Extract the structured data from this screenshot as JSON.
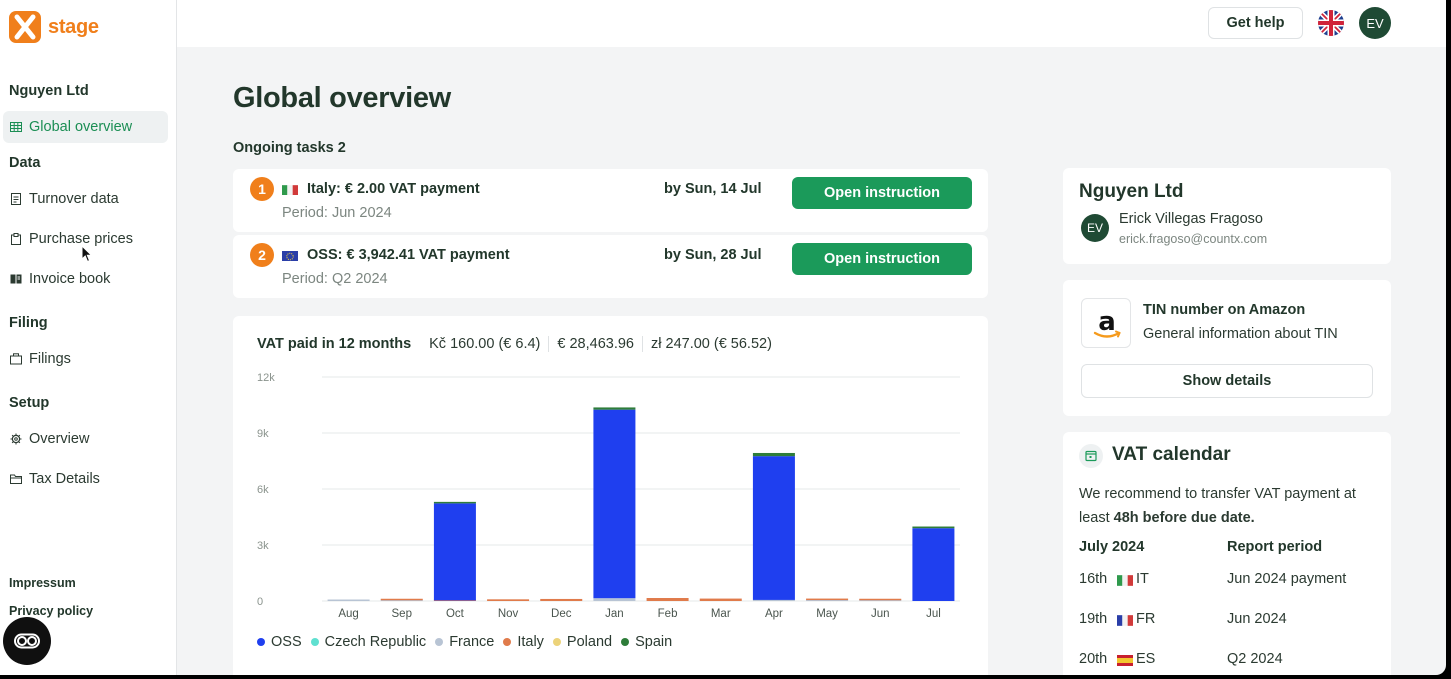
{
  "brand": {
    "name": "stage",
    "accent": "#f07f1b"
  },
  "sidebar": {
    "company": "Nguyen Ltd",
    "active_item": "Global overview",
    "sections": [
      {
        "heading": "Data",
        "items": [
          "Turnover data",
          "Purchase prices",
          "Invoice book"
        ]
      },
      {
        "heading": "Filing",
        "items": [
          "Filings"
        ]
      },
      {
        "heading": "Setup",
        "items": [
          "Overview",
          "Tax Details"
        ]
      }
    ],
    "footer": [
      "Impressum",
      "Privacy policy"
    ]
  },
  "topbar": {
    "help_label": "Get help",
    "language_icon": "uk-flag-icon",
    "avatar_initials": "EV"
  },
  "main": {
    "title": "Global overview",
    "tasks_title": "Ongoing tasks 2",
    "tasks": [
      {
        "number": "1",
        "flag": "italy-flag-icon",
        "title": "Italy:  € 2.00 VAT payment",
        "period": "Period: Jun 2024",
        "due": "by Sun, 14 Jul",
        "button": "Open instruction"
      },
      {
        "number": "2",
        "flag": "eu-flag-icon",
        "title": "OSS:  € 3,942.41 VAT payment",
        "period": "Period: Q2 2024",
        "due": "by Sun, 28 Jul",
        "button": "Open instruction"
      }
    ]
  },
  "chart_header": {
    "title": "VAT paid in 12 months",
    "totals": [
      "Kč 160.00 (€ 6.4)",
      "€ 28,463.96",
      "zł 247.00 (€ 56.52)"
    ]
  },
  "chart_data": {
    "type": "bar",
    "stacked": true,
    "categories": [
      "Aug",
      "Sep",
      "Oct",
      "Nov",
      "Dec",
      "Jan",
      "Feb",
      "Mar",
      "Apr",
      "May",
      "Jun",
      "Jul"
    ],
    "ylim": [
      0,
      12000
    ],
    "yticks": [
      0,
      3000,
      6000,
      9000,
      12000
    ],
    "ytick_labels": [
      "0",
      "3k",
      "6k",
      "9k",
      "12k"
    ],
    "grid": true,
    "legend_position": "bottom-left",
    "series": [
      {
        "name": "France",
        "color": "#b8c4d4",
        "values": [
          40,
          40,
          0,
          0,
          0,
          150,
          0,
          0,
          60,
          50,
          40,
          0
        ]
      },
      {
        "name": "Italy",
        "color": "#e07b4b",
        "values": [
          0,
          20,
          30,
          90,
          110,
          0,
          160,
          130,
          0,
          40,
          20,
          0
        ]
      },
      {
        "name": "OSS",
        "color": "#1f3fef",
        "values": [
          0,
          0,
          5200,
          0,
          0,
          10100,
          0,
          0,
          7700,
          0,
          0,
          3900
        ]
      },
      {
        "name": "Czech Republic",
        "color": "#5fe0d0",
        "values": [
          0,
          0,
          0,
          0,
          0,
          0,
          0,
          0,
          0,
          0,
          0,
          0
        ]
      },
      {
        "name": "Poland",
        "color": "#ecd37a",
        "values": [
          0,
          0,
          0,
          0,
          0,
          0,
          0,
          0,
          0,
          0,
          0,
          0
        ]
      },
      {
        "name": "Spain",
        "color": "#2e7d3a",
        "values": [
          0,
          0,
          30,
          0,
          0,
          120,
          0,
          0,
          170,
          0,
          0,
          90
        ]
      }
    ],
    "legend_order": [
      "OSS",
      "Czech Republic",
      "France",
      "Italy",
      "Poland",
      "Spain"
    ]
  },
  "right": {
    "company_card": {
      "name": "Nguyen Ltd",
      "avatar": "EV",
      "user": "Erick Villegas Fragoso",
      "email": "erick.fragoso@countx.com"
    },
    "tin_card": {
      "logo": "amazon-logo-icon",
      "title": "TIN number on Amazon",
      "subtitle": "General information about TIN",
      "button": "Show details"
    },
    "calendar": {
      "title": "VAT calendar",
      "text_prefix": "We recommend to transfer VAT payment at least ",
      "text_bold": "48h before due date.",
      "col_month": "July 2024",
      "col_period": "Report period",
      "rows": [
        {
          "day": "16th",
          "flag": "italy-flag-icon",
          "country": "IT",
          "period": "Jun 2024 payment"
        },
        {
          "day": "19th",
          "flag": "france-flag-icon",
          "country": "FR",
          "period": "Jun 2024"
        },
        {
          "day": "20th",
          "flag": "spain-flag-icon",
          "country": "ES",
          "period": "Q2 2024"
        }
      ]
    }
  }
}
